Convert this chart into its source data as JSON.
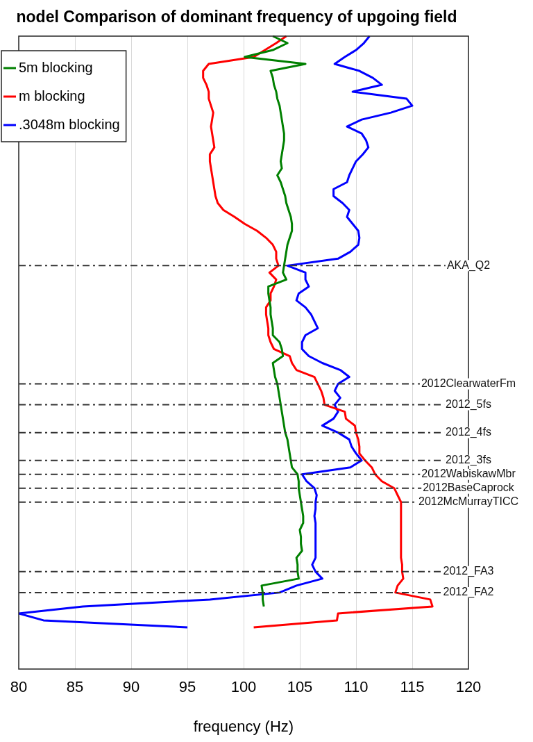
{
  "chart_data": {
    "type": "line",
    "orientation": "horizontal",
    "title": "nodel Comparison of dominant frequency of upgoing field",
    "xlabel": "frequency (Hz)",
    "categories": [
      null,
      null,
      null,
      null,
      null,
      null,
      null,
      null,
      null,
      null,
      null,
      null,
      null,
      null,
      null,
      null,
      null,
      null,
      null,
      null,
      null,
      null,
      null,
      null,
      null,
      null,
      null,
      null,
      null,
      null,
      null,
      null,
      null,
      "AKA_Q2",
      null,
      null,
      null,
      null,
      null,
      null,
      null,
      null,
      null,
      null,
      null,
      null,
      null,
      null,
      null,
      null,
      "2012ClearwaterFm",
      null,
      null,
      "2012_5fs",
      null,
      null,
      null,
      "2012_4fs",
      null,
      null,
      null,
      "2012_3fs",
      null,
      "2012WabiskawMbr",
      null,
      "2012BaseCaprock",
      null,
      "2012McMurrayTICC",
      null,
      null,
      null,
      null,
      null,
      null,
      null,
      null,
      null,
      "2012_FA3",
      null,
      null,
      "2012_FA2",
      null,
      null,
      null,
      null,
      null,
      null,
      null,
      null,
      null,
      null,
      null
    ],
    "series": [
      {
        "name": "5m blocking",
        "color": "#008000",
        "values": [
          102.6,
          103.9,
          102.6,
          100.1,
          105.5,
          102.4,
          102.6,
          102.7,
          102.9,
          103.0,
          103.2,
          103.3,
          103.4,
          103.5,
          103.6,
          103.6,
          103.5,
          103.4,
          103.3,
          103.4,
          103.0,
          103.3,
          103.5,
          103.7,
          103.8,
          104.0,
          104.2,
          104.3,
          104.3,
          104.1,
          103.9,
          103.8,
          103.7,
          103.6,
          103.5,
          103.8,
          102.2,
          102.2,
          102.3,
          102.4,
          102.4,
          102.5,
          102.6,
          102.6,
          103.2,
          103.4,
          103.5,
          102.6,
          102.7,
          102.8,
          103.0,
          103.1,
          103.2,
          103.3,
          103.4,
          103.5,
          103.6,
          103.7,
          103.9,
          104.0,
          104.1,
          104.2,
          104.3,
          104.8,
          104.9,
          104.9,
          105.0,
          105.1,
          105.2,
          105.3,
          105.3,
          105.0,
          105.1,
          105.1,
          105.2,
          104.7,
          104.8,
          104.8,
          104.9,
          101.6,
          101.7,
          101.7,
          101.8,
          null,
          null,
          null,
          null,
          null,
          null,
          null,
          null,
          null
        ]
      },
      {
        "name": "m blocking",
        "color": "#ff0000",
        "values": [
          103.8,
          102.9,
          101.9,
          100.9,
          96.9,
          96.4,
          96.4,
          96.7,
          96.9,
          96.9,
          97.1,
          97.3,
          97.2,
          97.1,
          97.2,
          97.3,
          97.4,
          97.0,
          97.0,
          97.1,
          97.2,
          97.3,
          97.4,
          97.5,
          97.7,
          98.2,
          99.2,
          100.1,
          101.2,
          102.0,
          102.6,
          102.9,
          102.9,
          103.1,
          102.3,
          102.9,
          102.7,
          102.4,
          102.4,
          102.0,
          102.0,
          102.1,
          102.2,
          102.2,
          102.4,
          102.7,
          104.1,
          104.3,
          104.7,
          106.3,
          106.6,
          106.9,
          107.1,
          107.2,
          109.0,
          109.1,
          109.9,
          110.0,
          110.2,
          110.3,
          110.3,
          110.8,
          111.4,
          111.7,
          112.3,
          113.4,
          113.7,
          114.0,
          114.0,
          114.0,
          114.0,
          114.0,
          114.0,
          114.0,
          114.0,
          114.0,
          114.1,
          114.1,
          114.2,
          113.7,
          113.5,
          116.6,
          116.8,
          108.4,
          108.3,
          100.9,
          null,
          null,
          null,
          null,
          null,
          null
        ]
      },
      {
        "name": ".3048m blocking",
        "color": "#0000ff",
        "values": [
          111.2,
          110.7,
          110.0,
          109.0,
          108.1,
          110.3,
          111.5,
          112.3,
          109.7,
          114.5,
          115.0,
          113.1,
          110.5,
          109.2,
          110.5,
          110.9,
          111.1,
          110.6,
          110.0,
          109.7,
          109.4,
          109.2,
          108.0,
          108.0,
          108.8,
          109.4,
          109.2,
          109.7,
          110.2,
          110.3,
          110.2,
          109.5,
          108.4,
          103.9,
          105.5,
          105.5,
          105.8,
          104.9,
          104.7,
          105.5,
          106.0,
          106.3,
          106.6,
          105.5,
          105.2,
          105.2,
          105.8,
          107.0,
          108.6,
          109.4,
          108.4,
          108.1,
          108.6,
          108.1,
          108.4,
          108.0,
          107.0,
          108.4,
          109.4,
          109.6,
          110.0,
          110.5,
          109.5,
          105.2,
          105.6,
          106.3,
          106.5,
          106.4,
          106.4,
          106.3,
          106.4,
          106.4,
          106.4,
          106.4,
          106.4,
          106.4,
          106.1,
          106.4,
          107.0,
          104.7,
          103.2,
          97.0,
          85.7,
          80.0,
          82.2,
          95.0,
          null,
          null,
          null,
          null,
          null,
          null
        ]
      }
    ],
    "xlim": [
      80,
      120
    ],
    "xticks": [
      80,
      85,
      90,
      95,
      100,
      105,
      110,
      115,
      120
    ],
    "ref_lines": [
      {
        "axis": "y",
        "value": "AKA_Q2",
        "color": "#333333",
        "line_style": "dashed"
      },
      {
        "axis": "y",
        "value": "2012ClearwaterFm",
        "color": "#333333",
        "line_style": "dashed"
      },
      {
        "axis": "y",
        "value": "2012_5fs",
        "color": "#333333",
        "line_style": "dashed"
      },
      {
        "axis": "y",
        "value": "2012_4fs",
        "color": "#333333",
        "line_style": "dashed"
      },
      {
        "axis": "y",
        "value": "2012_3fs",
        "color": "#333333",
        "line_style": "dashed"
      },
      {
        "axis": "y",
        "value": "2012WabiskawMbr",
        "color": "#333333",
        "line_style": "dashed"
      },
      {
        "axis": "y",
        "value": "2012BaseCaprock",
        "color": "#333333",
        "line_style": "dashed"
      },
      {
        "axis": "y",
        "value": "2012McMurrayTICC",
        "color": "#333333",
        "line_style": "dashed"
      },
      {
        "axis": "y",
        "value": "2012_FA3",
        "color": "#333333",
        "line_style": "dashed"
      },
      {
        "axis": "y",
        "value": "2012_FA2",
        "color": "#333333",
        "line_style": "dashed"
      }
    ],
    "grid": "x",
    "legend": "top left",
    "marker": "none",
    "line_style": "solid"
  }
}
